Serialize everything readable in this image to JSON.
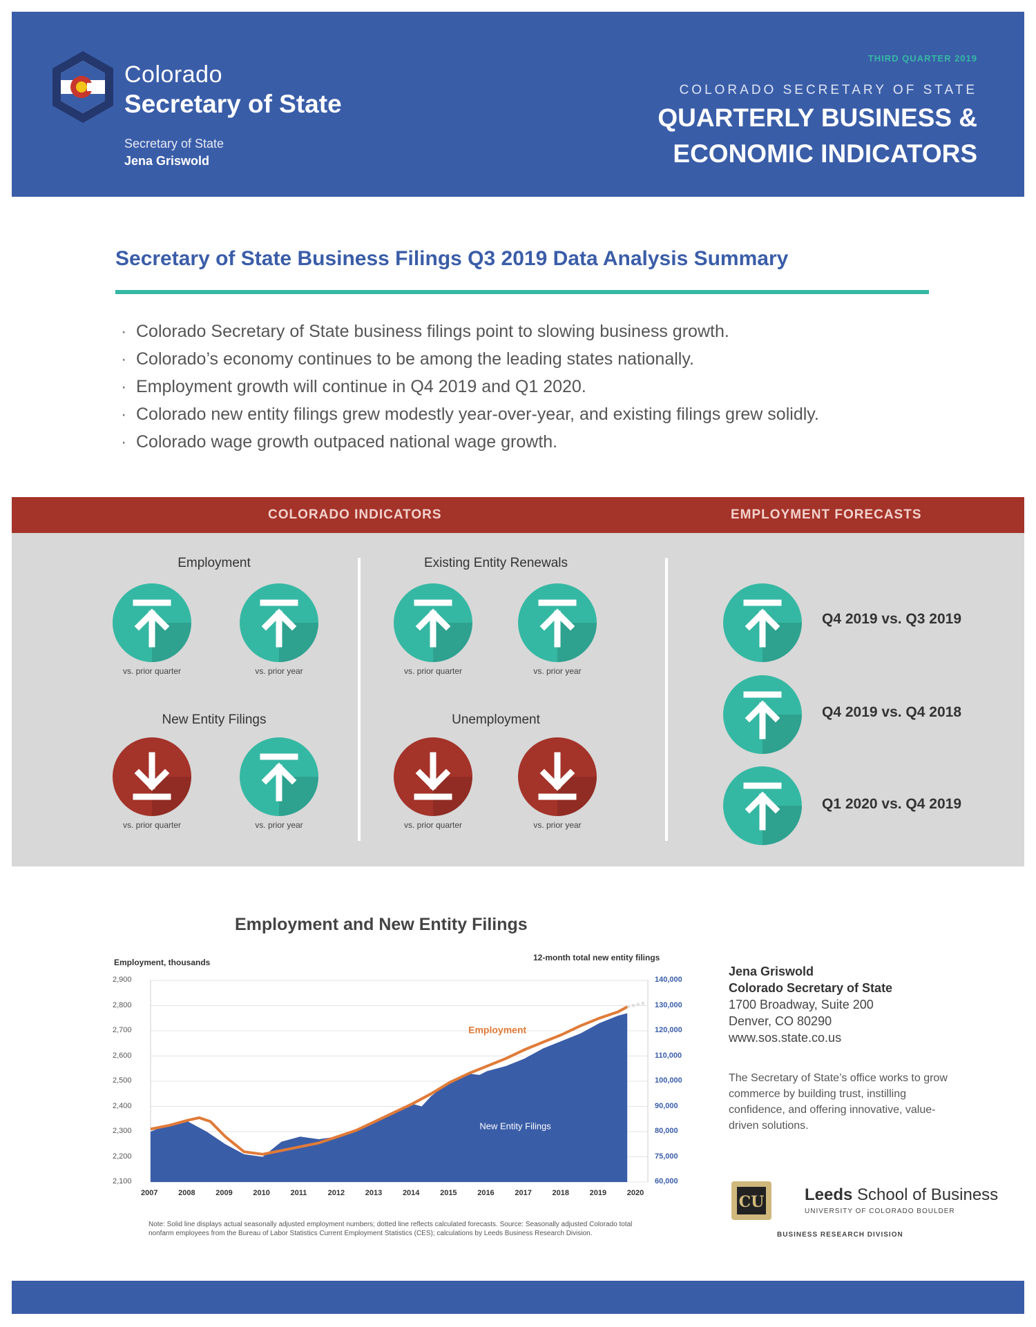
{
  "header": {
    "brand_line1": "Colorado",
    "brand_line2": "Secretary of State",
    "brand_line3": "Secretary of State",
    "brand_line4": "Jena Griswold",
    "quarter": "THIRD QUARTER 2019",
    "org": "COLORADO SECRETARY OF STATE",
    "title_line1": "QUARTERLY BUSINESS &",
    "title_line2": "ECONOMIC INDICATORS"
  },
  "summary": {
    "title": "Secretary of State Business Filings Q3 2019 Data Analysis Summary",
    "bullets": [
      "Colorado Secretary of State business filings point to slowing business growth.",
      "Colorado’s economy continues to be among the leading states nationally.",
      "Employment growth will continue in Q4 2019 and Q1 2020.",
      "Colorado new entity filings grew modestly year-over-year, and existing filings grew solidly.",
      "Colorado wage growth outpaced national wage growth."
    ]
  },
  "indicators": {
    "band_left": "COLORADO INDICATORS",
    "band_right": "EMPLOYMENT FORECASTS",
    "groups": {
      "employment": {
        "title": "Employment",
        "items": [
          {
            "dir": "up",
            "label": "vs. prior quarter"
          },
          {
            "dir": "up",
            "label": "vs. prior year"
          }
        ]
      },
      "renewals": {
        "title": "Existing Entity Renewals",
        "items": [
          {
            "dir": "up",
            "label": "vs. prior quarter"
          },
          {
            "dir": "up",
            "label": "vs. prior year"
          }
        ]
      },
      "new_filings": {
        "title": "New Entity Filings",
        "items": [
          {
            "dir": "down",
            "label": "vs. prior quarter"
          },
          {
            "dir": "up",
            "label": "vs. prior year"
          }
        ]
      },
      "unemployment": {
        "title": "Unemployment",
        "items": [
          {
            "dir": "down",
            "label": "vs. prior quarter"
          },
          {
            "dir": "down",
            "label": "vs. prior year"
          }
        ]
      }
    },
    "forecasts": [
      {
        "dir": "up",
        "label": "Q4 2019 vs. Q3 2019"
      },
      {
        "dir": "up",
        "label": "Q4 2019 vs. Q4 2018"
      },
      {
        "dir": "up",
        "label": "Q1 2020 vs. Q4 2019"
      }
    ],
    "colors": {
      "positive": "#35b8a3",
      "negative": "#a4332a"
    }
  },
  "chart_data": {
    "type": "area",
    "title": "Employment and New Entity Filings",
    "ylabel": "Employment, thousands",
    "ylabel_right": "12-month total new entity filings",
    "x_ticks": [
      "2007",
      "2008",
      "2009",
      "2010",
      "2011",
      "2012",
      "2013",
      "2014",
      "2015",
      "2016",
      "2017",
      "2018",
      "2019",
      "2020"
    ],
    "y_ticks": [
      "2,900",
      "2,800",
      "2,700",
      "2,600",
      "2,500",
      "2,400",
      "2,300",
      "2,200",
      "2,100"
    ],
    "y_right_ticks": [
      "140,000",
      "130,000",
      "120,000",
      "110,000",
      "100,000",
      "90,000",
      "80,000",
      "75,000",
      "60,000"
    ],
    "ylim": [
      2100,
      2900
    ],
    "xlim": [
      2007,
      2020.3
    ],
    "series": [
      {
        "name": "New Entity Filings",
        "type": "area",
        "color": "#3a5da8",
        "x": [
          2007.0,
          2007.5,
          2008.0,
          2008.5,
          2009.0,
          2009.5,
          2010.0,
          2010.5,
          2011.0,
          2011.5,
          2012.0,
          2012.5,
          2013.0,
          2013.5,
          2014.0,
          2014.25,
          2014.5,
          2015.0,
          2015.5,
          2015.8,
          2016.0,
          2016.5,
          2017.0,
          2017.5,
          2018.0,
          2018.5,
          2019.0,
          2019.5,
          2019.75
        ],
        "values": [
          2300,
          2330,
          2340,
          2300,
          2250,
          2210,
          2200,
          2260,
          2280,
          2270,
          2280,
          2310,
          2340,
          2370,
          2410,
          2400,
          2440,
          2500,
          2530,
          2525,
          2540,
          2560,
          2590,
          2630,
          2660,
          2690,
          2730,
          2760,
          2770
        ]
      },
      {
        "name": "Employment",
        "type": "line",
        "color": "#e07b39",
        "x": [
          2007.0,
          2007.5,
          2008.0,
          2008.3,
          2008.6,
          2009.0,
          2009.5,
          2010.0,
          2010.5,
          2011.0,
          2011.5,
          2012.0,
          2012.5,
          2013.0,
          2013.5,
          2014.0,
          2014.5,
          2015.0,
          2015.5,
          2016.0,
          2016.5,
          2017.0,
          2017.5,
          2018.0,
          2018.5,
          2019.0,
          2019.5,
          2019.75
        ],
        "values": [
          2310,
          2325,
          2345,
          2355,
          2340,
          2280,
          2220,
          2210,
          2225,
          2240,
          2255,
          2280,
          2305,
          2340,
          2375,
          2410,
          2450,
          2495,
          2530,
          2560,
          2590,
          2625,
          2655,
          2685,
          2720,
          2750,
          2775,
          2795
        ]
      }
    ],
    "annotation_employment": "Employment",
    "annotation_filings": "New Entity Filings",
    "note": "Note: Solid line displays actual seasonally adjusted employment numbers; dotted line reflects calculated forecasts. Source: Seasonally adjusted Colorado total nonfarm employees from the Bureau of Labor Statistics Current Employment Statistics (CES); calculations by Leeds Business Research Division."
  },
  "contact": {
    "name": "Jena Griswold",
    "role": "Colorado Secretary of State",
    "address1": "1700 Broadway, Suite 200",
    "address2": "Denver, CO 80290",
    "web": "www.sos.state.co.us",
    "mission": "The Secretary of State’s office works to grow commerce by building trust, instilling confidence, and offering innovative, value-driven solutions."
  },
  "leeds": {
    "bold": "Leeds",
    "rest": "School of Business",
    "sub": "UNIVERSITY OF COLORADO BOULDER",
    "division": "BUSINESS RESEARCH DIVISION"
  }
}
